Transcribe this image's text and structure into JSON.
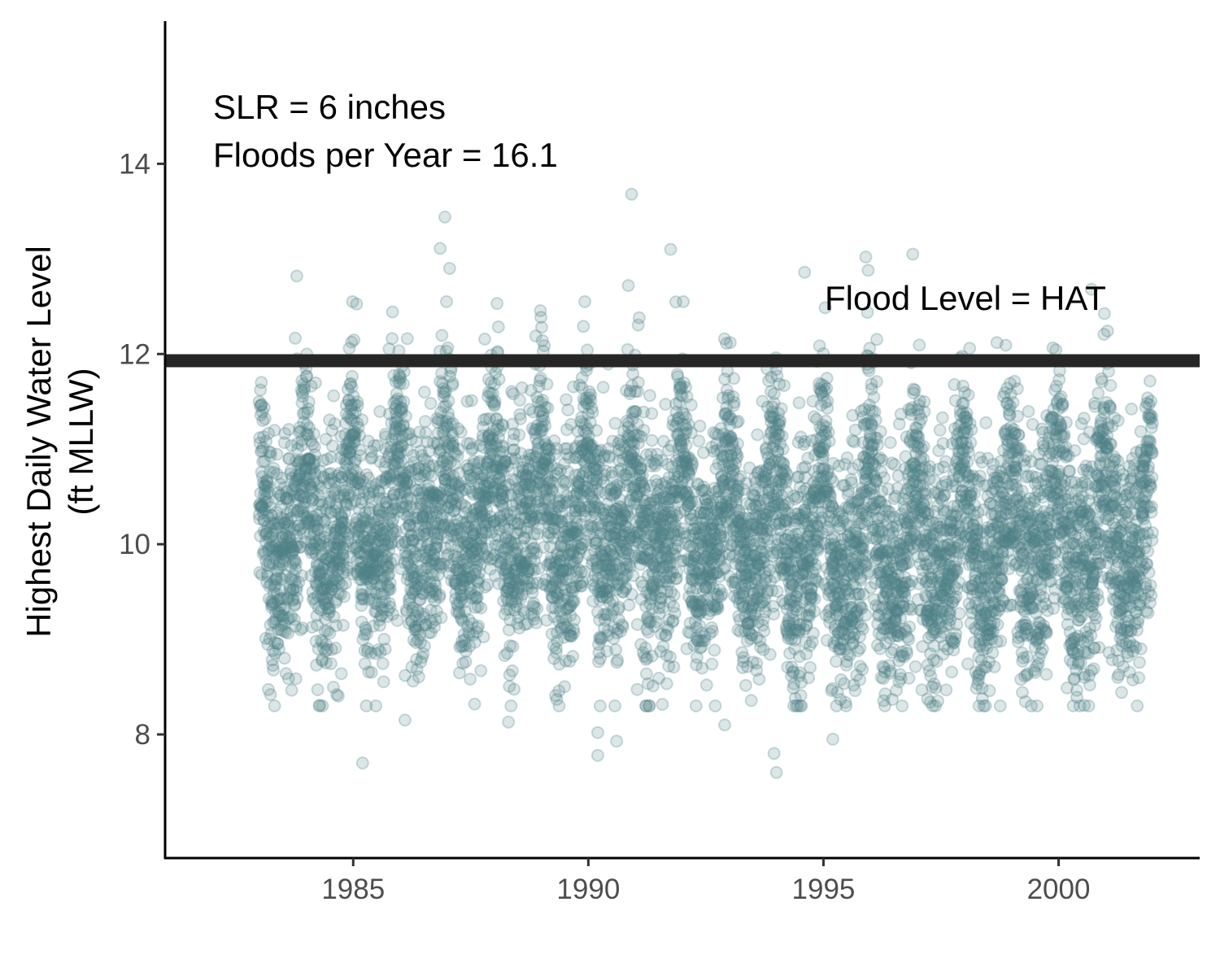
{
  "chart_data": {
    "type": "scatter",
    "title": "",
    "xlabel": "",
    "ylabel": "Highest Daily Water Level",
    "ylabel_line2": "(ft MLLW)",
    "xlim": [
      1981,
      2003
    ],
    "ylim": [
      6.7,
      15.5
    ],
    "x_ticks": [
      1985,
      1990,
      1995,
      2000
    ],
    "x_tick_labels": [
      "1985",
      "1990",
      "1995",
      "2000"
    ],
    "y_ticks": [
      8,
      10,
      12,
      14
    ],
    "y_tick_labels": [
      "8",
      "10",
      "12",
      "14"
    ],
    "grid": false,
    "legend": "none",
    "point_color": "#4e8087",
    "point_alpha": 0.2,
    "hline": {
      "y": 11.93,
      "label": "Flood Level = HAT",
      "color": "#262626"
    },
    "annotations": [
      "SLR = 6 inches",
      "Floods per Year = 16.1"
    ],
    "x_start": 1983.0,
    "x_end": 2002.0,
    "baseline_mean": 10.15,
    "points_per_year": 365,
    "outliers": [
      {
        "x": 1990.92,
        "y": 13.68
      },
      {
        "x": 1986.95,
        "y": 13.44
      },
      {
        "x": 1986.85,
        "y": 13.11
      },
      {
        "x": 1987.05,
        "y": 12.9
      },
      {
        "x": 1983.8,
        "y": 12.82
      },
      {
        "x": 1991.75,
        "y": 13.1
      },
      {
        "x": 1995.9,
        "y": 13.02
      },
      {
        "x": 1996.9,
        "y": 13.05
      },
      {
        "x": 1995.95,
        "y": 12.88
      },
      {
        "x": 1994.6,
        "y": 12.86
      },
      {
        "x": 1990.85,
        "y": 12.72
      },
      {
        "x": 2000.7,
        "y": 12.68
      },
      {
        "x": 1985.2,
        "y": 7.7
      },
      {
        "x": 1994.0,
        "y": 7.6
      },
      {
        "x": 1993.95,
        "y": 7.8
      },
      {
        "x": 1990.2,
        "y": 7.78
      },
      {
        "x": 1990.2,
        "y": 8.02
      },
      {
        "x": 1995.2,
        "y": 7.95
      },
      {
        "x": 1990.6,
        "y": 7.93
      },
      {
        "x": 1988.3,
        "y": 8.13
      },
      {
        "x": 1986.1,
        "y": 8.15
      },
      {
        "x": 1992.9,
        "y": 8.1
      }
    ]
  }
}
